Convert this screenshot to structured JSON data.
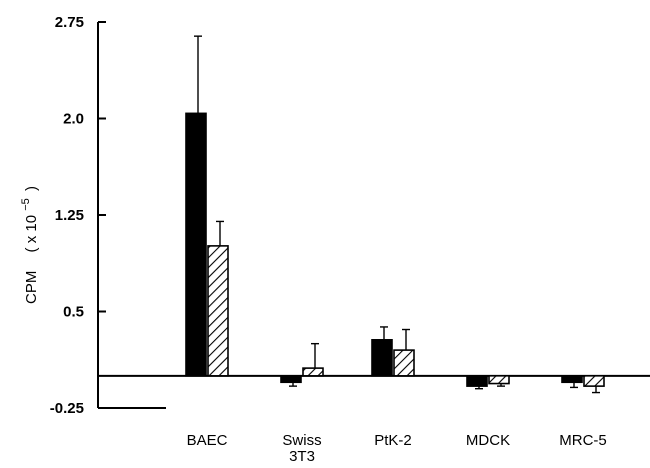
{
  "chart_data": {
    "type": "bar",
    "title": "",
    "ylabel": "CPM",
    "ylabel_scale": "( x 10",
    "ylabel_exponent": "−5",
    "ylabel_close": ")",
    "xlabel": "",
    "ylim": [
      -0.25,
      2.75
    ],
    "yticks": [
      "2.75",
      "2.0",
      "1.25",
      "0.5",
      "-0.25"
    ],
    "ytick_values": [
      2.75,
      2.0,
      1.25,
      0.5,
      -0.25
    ],
    "categories": [
      {
        "lines": [
          "BAEC"
        ]
      },
      {
        "lines": [
          "Swiss",
          "3T3"
        ]
      },
      {
        "lines": [
          "PtK-2"
        ]
      },
      {
        "lines": [
          "MDCK"
        ]
      },
      {
        "lines": [
          "MRC-5"
        ]
      }
    ],
    "series": [
      {
        "fill": "solid",
        "color": "#000000",
        "values": [
          2.04,
          -0.05,
          0.28,
          -0.08,
          -0.05
        ],
        "errors": [
          0.6,
          0.03,
          0.1,
          0.02,
          0.04
        ]
      },
      {
        "fill": "hatched",
        "color": "#000000",
        "values": [
          1.01,
          0.06,
          0.2,
          -0.06,
          -0.08
        ],
        "errors": [
          0.19,
          0.19,
          0.16,
          0.02,
          0.05
        ]
      }
    ],
    "grid": false,
    "legend": "none"
  }
}
